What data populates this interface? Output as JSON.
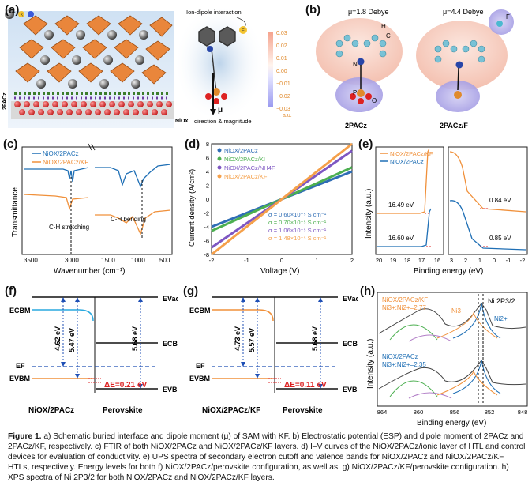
{
  "labels": {
    "a": "(a)",
    "b": "(b)",
    "c": "(c)",
    "d": "(d)",
    "e": "(e)",
    "f": "(f)",
    "g": "(g)",
    "h": "(h)"
  },
  "panel_a": {
    "side_label": "2PACz",
    "nio_label": "NiOx",
    "ion_dipole": "Ion-dipole interaction",
    "mu": "μ",
    "direction": "direction & magnitude",
    "k_label": "K",
    "f_label": "F"
  },
  "colorbar": {
    "ticks": [
      "0.03",
      "0.02",
      "0.01",
      "0.00",
      "−0.01",
      "−0.02",
      "−0.03"
    ],
    "unit": "a.u."
  },
  "panel_b": {
    "mu1": "μ=1.8 Debye",
    "mu2": "μ=4.4 Debye",
    "name1": "2PACz",
    "name2": "2PACz/F",
    "atoms": [
      "H",
      "C",
      "N",
      "P",
      "O",
      "F"
    ]
  },
  "chart_data": [
    {
      "panel": "c",
      "type": "line",
      "xlabel": "Wavenumber (cm⁻¹)",
      "ylabel": "Transmittance",
      "xticks": [
        "3500",
        "3000",
        "1500",
        "1000",
        "500"
      ],
      "series": [
        {
          "name": "NiOX/2PACz",
          "color": "#1f6fb5"
        },
        {
          "name": "NiOX/2PACz/KF",
          "color": "#f0903a"
        }
      ],
      "annotations": [
        "C-H stretching",
        "C-H bending"
      ]
    },
    {
      "panel": "d",
      "type": "line",
      "xlabel": "Voltage (V)",
      "ylabel": "Current density (A/cm²)",
      "xlim": [
        -2,
        2
      ],
      "ylim": [
        -8,
        8
      ],
      "xticks": [
        "-2",
        "-1",
        "0",
        "1",
        "2"
      ],
      "yticks": [
        "8",
        "6",
        "4",
        "2",
        "0",
        "-2",
        "-4",
        "-6",
        "-8"
      ],
      "series": [
        {
          "name": "NiOX/2PACz",
          "color": "#2f6db5",
          "sigma": "σ = 0.60×10⁻⁵ S cm⁻¹",
          "slope": 2.0
        },
        {
          "name": "NiOX/2PACz/KI",
          "color": "#4caf50",
          "sigma": "σ = 0.70×10⁻⁵ S cm⁻¹",
          "slope": 2.3
        },
        {
          "name": "NiOX/2PACz/NH4F",
          "color": "#7e57c2",
          "sigma": "σ = 1.06×10⁻⁵ S cm⁻¹",
          "slope": 3.5
        },
        {
          "name": "NiOX/2PACz/KF",
          "color": "#f5a04a",
          "sigma": "σ = 1.48×10⁻⁵ S cm⁻¹",
          "slope": 4.0
        }
      ]
    },
    {
      "panel": "e",
      "type": "line",
      "xlabel": "Binding energy (eV)",
      "ylabel": "Intensity (a.u.)",
      "xticks_left": [
        "20",
        "19",
        "18",
        "17",
        "16"
      ],
      "xticks_right": [
        "3",
        "2",
        "1",
        "0",
        "-1",
        "-2"
      ],
      "series": [
        {
          "name": "NiOX/2PACz/KF",
          "color": "#f0903a"
        },
        {
          "name": "NiOX/2PACz",
          "color": "#1f6fb5"
        }
      ],
      "values": [
        "16.49 eV",
        "16.60 eV",
        "0.84 eV",
        "0.85 eV"
      ]
    },
    {
      "panel": "h",
      "type": "line",
      "xlabel": "Binding energy (eV)",
      "ylabel": "Intensity (a.u.)",
      "xticks": [
        "864",
        "860",
        "856",
        "852",
        "848"
      ],
      "title": "Ni 2P3/2",
      "legend_top": [
        "NiOX/2PACz/KF",
        "Ni3+:Ni2+=2.77"
      ],
      "legend_bottom": [
        "NiOX/2PACz",
        "Ni3+:Ni2+=2.35"
      ],
      "peaks": [
        "Ni3+",
        "Ni2+"
      ]
    }
  ],
  "panel_f": {
    "evac": "EVac",
    "ecbm": "ECBM",
    "ef": "EF",
    "evbm": "EVBM",
    "v1": "4.62 eV",
    "v2": "5.47 eV",
    "v3": "5.68 eV",
    "de": "ΔE=0.21 eV",
    "left": "NiOX/2PACz",
    "right": "Perovskite"
  },
  "panel_g": {
    "evac": "EVac",
    "ecbm": "ECBM",
    "ef": "EF",
    "evbm": "EVBM",
    "v1": "4.73 eV",
    "v2": "5.57 eV",
    "v3": "5.68 eV",
    "de": "ΔE=0.11 eV",
    "left": "NiOX/2PACz/KF",
    "right": "Perovskite"
  },
  "caption": {
    "lead": "Figure 1.",
    "text": "a) Schematic buried interface and dipole moment (μ) of SAM with KF. b) Electrostatic potential (ESP) and dipole moment of 2PACz and 2PACz/KF, respectively. c) FTIR of both NiOX/2PACz and NiOX/2PACz/KF layers. d) I–V curves of the NiOX/2PACz/ionic layer of HTL and control devices for evaluation of conductivity. e) UPS spectra of secondary electron cutoff and valence bands for NiOX/2PACz and NiOX/2PACz/KF HTLs, respectively. Energy levels for both f) NiOX/2PACz/perovskite configuration, as well as, g) NiOX/2PACz/KF/perovskite configuration. h) XPS spectra of Ni 2P3/2 for both NiOX/2PACz and NiOX/2PACz/KF layers."
  }
}
